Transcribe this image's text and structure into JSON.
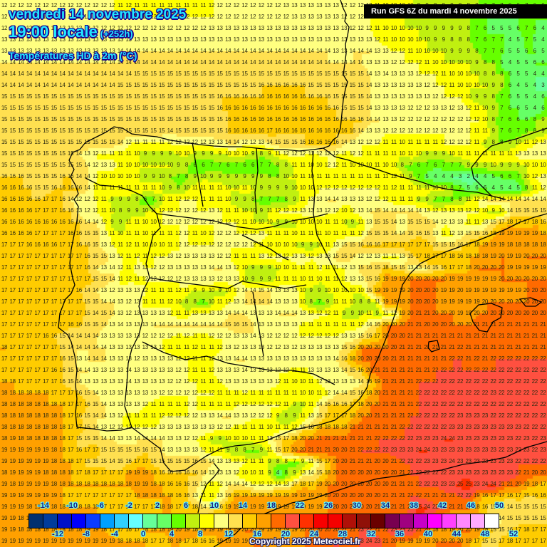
{
  "header": {
    "date_line": "vendredi 14 novembre 2025",
    "time_line": "19:00 locale",
    "lead_time": "(+252h)",
    "variable": "Températures HD à 2m (°C)"
  },
  "run_info": "Run GFS 6Z du mardi 4 novembre 2025",
  "copyright": "Copyright 2025 Meteociel.fr",
  "colorbar": {
    "top_labels": [
      "-14",
      "-10",
      "-6",
      "-2",
      "2",
      "6",
      "10",
      "14",
      "18",
      "22",
      "26",
      "30",
      "34",
      "38",
      "42",
      "46",
      "50"
    ],
    "bottom_labels": [
      "-12",
      "-8",
      "-4",
      "0",
      "4",
      "8",
      "12",
      "16",
      "20",
      "24",
      "28",
      "32",
      "36",
      "40",
      "44",
      "48",
      "52"
    ],
    "colors": [
      "#001040",
      "#003070",
      "#003c9c",
      "#0010c8",
      "#0000ff",
      "#0a3cff",
      "#00a0ff",
      "#30d0ff",
      "#66ffff",
      "#66ff99",
      "#66ff66",
      "#66ff00",
      "#c0f010",
      "#ffff00",
      "#ffff80",
      "#ffe050",
      "#ffcc00",
      "#ffa000",
      "#ff6a00",
      "#ff5040",
      "#ff3000",
      "#f80000",
      "#f40000",
      "#b01008",
      "#901008",
      "#6a0000",
      "#780050",
      "#a00080",
      "#c800c8",
      "#ff00ff",
      "#ff40ff",
      "#ff88ff",
      "#ffaaff",
      "#ffffff"
    ]
  },
  "chart_data": {
    "type": "heatmap",
    "title": "Températures HD à 2m (°C) — vendredi 14 novembre 2025 19:00 locale (+252h)",
    "model": "GFS 6Z du mardi 4 novembre 2025",
    "region": "Péninsule Ibérique / golfe de Gascogne / Baléares",
    "units": "°C",
    "grid_cols": 66,
    "grid_rows": 48,
    "scale_min": -14,
    "scale_step": 2,
    "rows": [
      "12 12 12 12 12 12 12 12 12 12 12 12 12 12 11 12 11 11 11 11 11 11 11 11 11 12 12 12 12 12 12 12 12 12 13 13 13 13 13 13 13 12 12 12 12 11 10 10 10 10 9 9 9 9 9 9 8 8 7 7 7 6 6 7 6 6",
      "12 12 12 12 12 12 12 12 12 12 12 12 12 12 12 12 12 12 12 12 12 12 12 12 12 12 12 12 12 12 12 12 12 12 12 13 13 13 13 13 13 12 12 12 12 11 10 10 10 9 9 9 9 9 9 8 8 7 6 5 5 5 6 7 6 6",
      "12 12 12 12 12 12 12 12 12 12 12 12 12 12 12 12 12 12 12 13 12 12 12 12 12 13 13 13 13 13 13 13 13 13 13 13 13 13 13 13 13 13 12 12 12 11 10 10 10 10 10 9 9 9 9 9 8 7 6 5 5 5 6 7 6 4",
      "13 13 13 13 13 13 13 13 13 13 13 13 13 13 13 13 13 13 13 13 13 13 13 13 13 13 13 13 13 13 13 13 13 13 13 13 13 13 13 13 13 13 13 13 13 12 11 10 10 10 10 10 9 9 8 8 8 7 6 7 7 4 5 7 5 4",
      "13 13 13 13 13 13 13 13 13 13 13 13 13 13 14 14 14 14 14 14 14 14 14 14 14 14 14 14 14 14 14 14 14 14 14 14 14 14 14 14 13 13 14 14 14 13 13 12 12 11 10 10 10 10 9 9 9 8 7 7 6 5 5 6 6 5",
      "14 14 14 14 14 14 14 14 14 14 14 14 14 14 14 14 14 14 14 14 14 14 14 14 14 14 14 14 14 14 14 14 14 14 14 14 14 14 14 14 14 14 14 14 13 13 13 12 12 12 12 11 10 10 10 10 10 9 8 8 5 4 5 5 6 6",
      "14 14 14 14 14 14 14 14 14 14 14 14 14 14 14 14 15 15 15 15 15 15 15 15 15 15 15 15 15 15 15 15 15 15 15 15 15 15 15 15 15 15 15 15 14 13 14 13 13 13 12 12 12 11 10 10 10 10 8 8 8 6 5 5 4 4",
      "14 14 14 14 14 14 14 14 14 14 14 14 14 14 15 15 15 15 15 15 15 15 15 15 15 15 15 15 15 15 15 16 16 16 16 16 16 15 15 15 15 15 15 15 14 13 13 13 13 13 13 12 12 12 11 10 10 10 10 9 8 6 4 5 4 3",
      "15 15 15 15 15 15 15 15 15 15 15 15 15 15 15 15 15 15 15 15 15 15 15 15 15 15 16 16 16 16 16 16 16 16 16 16 16 16 16 16 15 15 15 15 14 13 13 13 13 13 13 13 12 12 12 12 10 9 9 8 7 6 5 5 4 6",
      "15 15 15 15 15 15 15 15 15 15 15 15 15 15 15 15 15 15 15 15 15 15 15 15 15 15 16 16 16 16 16 16 16 16 16 16 16 16 16 16 16 15 15 15 14 13 13 13 13 12 12 12 13 13 12 13 12 11 10 9 7 6 6 5 4 6",
      "15 15 15 15 15 15 15 15 15 15 15 15 15 15 15 15 15 15 15 15 15 15 15 15 15 15 15 16 16 16 16 16 16 16 16 16 16 16 16 16 16 16 16 16 14 14 13 13 12 12 12 12 12 12 12 12 12 12 10 8 7 6 6 6 8 9",
      "15 15 15 15 15 15 15 15 15 15 15 15 15 15 15 15 15 15 15 15 14 15 15 15 15 15 15 16 16 16 16 16 17 16 16 16 16 16 16 16 16 16 16 14 13 13 12 12 12 12 12 12 12 12 12 12 12 11 11 9 7 6 7 8 8 9",
      "15 15 15 15 15 15 15 15 15 15 15 15 15 15 14 12 11 11 11 11 12 12 12 12 12 13 13 14 14 12 12 13 14 15 15 15 16 16 16 16 16 14 13 12 12 12 11 11 10 11 11 11 11 12 12 12 12 11 9 8 8 9 10 11 12 13",
      "15 15 15 15 15 15 15 15 15 14 13 12 11 11 11 11 10 9 9 9 9 10 10 9 9 9 9 10 10 10 9 8 9 11 12 12 12 11 12 12 12 11 12 12 11 11 11 11 10 11 10 9 9 9 10 11 11 11 11 11 11 11 13 13 13 13",
      "15 15 15 15 15 15 15 15 15 15 14 12 13 13 11 10 10 10 10 10 10 9 8 6 6 7 7 6 7 6 6 7 7 8 8 11 11 10 10 12 12 11 10 10 10 11 10 10 8 7 6 7 6 7 7 7 9 9 9 10 9 9 9 10 10 10",
      "16 16 16 15 15 15 15 16 16 14 14 12 10 10 10 10 10 9 9 10 8 7 8 9 10 9 9 9 9 9 9 9 8 8 10 10 11 10 11 11 11 11 11 11 11 11 11 12 11 9 7 5 4 4 4 3 2 4 4 5 6 6 7 10 12 13",
      "16 16 16 16 15 15 16 16 16 16 14 11 11 11 11 11 11 11 11 10 9 8 10 11 11 11 11 10 10 11 10 9 9 9 9 10 10 10 12 12 12 12 12 12 12 12 11 12 11 11 11 11 10 10 8 7 5 6 6 4 5 4 5 8 11 12",
      "16 16 16 16 16 17 17 16 14 12 12 12 11 9 9 9 8 6 7 10 11 12 12 12 11 11 11 10 9 9 8 7 7 7 8 9 11 13 13 14 14 13 13 13 12 12 12 11 11 11 9 9 7 7 8 8 11 12 14 14 14 14 14 14 14 14",
      "16 16 16 16 17 17 17 16 16 13 12 12 11 10 8 9 9 10 11 12 12 12 12 12 12 13 12 11 11 10 10 9 11 12 12 12 13 13 13 12 12 10 12 13 14 15 14 14 14 14 14 13 12 13 13 13 12 12 10 9 10 14 15 15 15 15",
      "16 16 16 16 16 16 16 16 16 16 14 14 12 9 9 11 11 10 10 12 12 12 12 12 12 12 12 12 12 11 10 10 10 9 9 10 10 10 10 11 11 10 9 11 13 15 15 14 13 15 15 15 14 12 13 13 11 11 13 15 17 18 17 17 18 16",
      "16 16 16 16 17 17 17 17 16 16 15 15 13 11 10 11 11 10 11 11 11 12 12 11 10 12 12 12 12 12 12 13 11 11 11 10 11 11 11 10 11 11 11 12 15 15 15 14 14 15 16 15 13 11 12 13 15 15 16 18 19 19 19 19 19 18",
      "17 17 17 16 16 16 16 17 17 16 16 15 13 12 11 12 11 10 10 10 11 12 12 12 12 12 12 12 12 12 12 11 10 10 10 10 9 9 10 11 13 15 15 16 16 16 17 17 17 17 17 17 15 15 15 16 17 18 19 19 19 18 18 18 18 18",
      "17 17 17 17 17 17 17 17 17 17 16 15 15 13 12 11 12 11 12 12 13 12 13 13 13 13 12 12 11 11 11 13 12 13 12 13 13 12 13 13 15 15 14 12 12 13 11 11 13 15 17 18 17 17 18 16 18 18 18 19 20 19 19 20 20 20",
      "17 17 17 17 17 17 17 17 17 17 16 14 13 14 12 11 13 12 12 12 13 13 13 13 13 14 14 13 12 10 9 9 9 10 10 11 11 11 12 11 11 12 13 15 16 15 18 15 15 13 13 14 15 16 17 17 18 20 20 20 20 19 19 19 19 19",
      "17 17 17 17 17 17 17 17 17 17 17 15 15 14 11 12 11 12 12 12 12 12 13 13 13 13 12 13 13 10 9 9 9 11 11 11 10 11 10 11 11 12 13 13 15 16 19 19 19 20 20 20 20 20 19 19 19 19 19 19 20 20 20 20 20 20",
      "17 17 17 17 17 17 17 17 17 16 14 14 13 12 13 13 13 12 11 11 11 12 11 9 9 10 9 10 12 14 14 15 14 13 13 13 10 9 9 10 10 10 10 10 15 19 19 19 19 20 20 20 20 19 19 20 19 19 19 19 19 19 19 20 20 20",
      "17 17 17 17 17 17 17 17 17 17 15 15 14 14 13 12 13 11 11 11 12 10 8 8 7 10 11 12 13 14 14 14 14 13 13 13 10 8 7 9 11 11 10 8 8 11 19 19 19 20 20 20 20 19 19 19 19 19 20 20 20 20 20 20 20 20",
      "17 17 17 17 17 17 17 17 17 17 15 14 15 14 13 12 13 13 13 13 12 11 11 13 13 13 13 14 14 14 13 13 13 14 14 14 13 13 12 12 11 9 9 10 11 9 11 12 19 20 21 21 20 20 20 19 19 20 20 20 20 20 20 20 20 20",
      "17 17 17 17 17 17 17 17 16 16 15 15 14 13 14 13 13 13 14 14 14 14 14 14 14 14 14 15 16 15 14 13 13 13 13 13 11 11 11 11 11 11 11 12 14 16 20 20 20 21 21 20 20 20 20 20 20 21 21 21 21 21 21 21 21 21",
      "17 17 17 17 17 16 16 15 14 14 14 14 13 13 13 13 13 12 12 12 12 11 12 11 11 12 12 12 13 13 14 13 12 12 12 12 12 12 12 12 12 13 13 15 16 17 20 20 20 21 21 21 21 21 21 21 21 21 21 21 21 21 21 21 21 21",
      "18 17 17 17 17 17 17 15 14 14 14 14 14 13 13 13 13 13 13 12 11 11 11 12 11 11 12 13 12 13 13 13 12 12 13 12 13 13 13 13 13 15 16 20 20 20 20 20 21 21 21 21 21 21 21 22 21 21 21 21 21 21 21 21 21 21",
      "17 17 17 17 17 17 17 16 15 13 14 14 14 13 13 13 12 13 13 13 13 12 12 11 11 12 13 13 14 14 13 13 13 13 13 13 13 13 13 13 14 16 18 20 20 20 20 21 21 21 21 21 21 21 22 22 21 22 21 22 22 22 22 22 22 22",
      "17 17 17 17 17 17 16 16 15 14 14 13 13 13 13 14 13 13 13 13 13 12 12 11 11 12 13 13 13 14 13 13 13 12 12 11 11 13 13 13 13 14 15 16 20 21 21 21 21 21 21 21 22 22 22 22 22 22 22 22 22 22 22 22 22 22",
      "18 18 17 17 17 17 17 16 15 14 13 13 13 13 13 14 13 13 13 13 12 12 12 12 11 11 12 13 13 13 13 13 13 12 11 10 10 11 12 13 13 13 13 14 16 19 21 21 21 21 22 22 22 22 22 22 22 22 22 22 22 22 22 22 22 22",
      "18 18 18 18 18 18 17 17 17 16 15 14 13 13 13 13 13 13 13 12 12 12 12 12 12 12 11 11 11 12 11 11 11 11 11 11 10 10 11 12 14 14 15 16 18 20 21 21 21 21 22 22 22 22 22 22 22 22 22 23 22 22 22 22 22 22",
      "18 18 18 18 18 18 18 18 17 17 16 15 14 13 13 13 13 12 11 11 11 11 12 12 11 11 11 11 12 12 12 12 12 12 11 9 10 11 14 16 16 16 17 18 20 20 21 21 21 21 22 22 22 22 22 22 22 22 22 22 22 22 22 22 22 22",
      "18 18 18 18 18 18 18 18 17 16 15 14 14 13 12 11 11 11 11 12 12 12 12 12 13 13 14 14 13 13 12 12 12 9 8 9 11 13 15 17 17 17 18 20 20 21 21 21 21 22 22 22 22 22 22 23 23 23 23 22 22 22 22 22 22 22",
      "18 18 18 18 18 18 18 18 17 17 15 14 13 12 12 12 12 12 12 13 13 13 13 13 13 13 12 12 11 11 11 11 10 11 11 12 15 16 18 18 18 18 21 21 21 21 21 21 22 22 22 22 22 22 23 23 23 23 23 23 23 23 23 22 22 22",
      "18 19 18 18 18 18 18 18 17 15 15 15 14 14 13 13 14 14 14 14 13 13 12 12 11 9 9 10 10 10 11 11 13 15 17 18 20 20 21 21 21 21 21 21 21 22 22 22 22 22 23 23 23 24 24 23 23 23 23 23 23 23 22 23 22 23",
      "19 19 19 19 19 19 18 18 17 16 17 17 15 15 15 15 15 16 15 14 13 13 13 13 12 11 11 9 8 8 7 9 11 15 17 20 20 21 21 21 20 20 21 22 22 22 22 23 23 23 24 24 23 23 23 23 23 23 23 23 22 23 22 23 22 23",
      "19 19 19 19 19 19 18 18 18 17 15 15 15 14 15 16 17 17 15 15 15 15 15 16 15 14 13 13 13 12 11 11 9 8 8 7 9 11 15 17 20 20 21 21 21 20 20 21 22 22 22 23 23 23 24 23 23 23 23 23 23 23 22 22 22 22",
      "18 19 19 19 19 18 18 18 18 17 18 17 17 17 17 19 19 19 18 16 16 16 16 16 14 13 13 13 12 10 10 11 9 4 8 9 13 14 15 18 20 20 20 20 20 20 20 20 21 22 22 22 22 22 23 23 23 23 23 23 23 23 22 21 20 20",
      "19 18 19 19 19 19 18 18 18 18 18 18 18 18 18 18 19 19 18 18 16 16 16 15 12 11 12 14 14 14 12 12 12 14 13 17 18 17 19 20 20 20 20 20 20 20 20 21 21 21 22 22 22 23 23 25 25 23 24 24 21 21 20 19 18 17",
      "19 19 19 19 19 19 19 18 17 17 17 17 17 17 17 17 18 18 18 18 18 16 16 13 11 11 13 16 19 19 19 19 19 19 19 19 19 19 19 20 20 20 20 20 20 20 21 21 21 22 22 21 21 21 21 22 22 19 16 17 17 16 17 15 16 16",
      "19 19 19 18 19 19 18 18 18 18 18 18 17 17 17 17 17 17 17 18 18 17 17 18 14 15 16 19 19 19 19 19 19 19 19 19 19 19 19 20 20 20 20 20 20 21 21 21 21 22 25 24 22 22 21 21 20 18 16 15 14 14 15 15 15 15",
      "19 19 18 18 18 18 18 18 18 18 18 18 18 18 18 17 17 17 17 18 18 18 17 15 17 19 18 19 19 19 19 19 19 19 19 19 20 20 20 20 20 21 22 22 22 22 22 22 22 24 24 22 20 18 16 16 17 19 17 13 14 15 15 15 15 15",
      "19 19 18 18 18 18 18 18 18 18 19 19 18 17 17 16 17 18 18 18 19 20 19 18 19 19 19 19 19 20 20 19 19 19 19 19 20 20 20 20 20 21 21 23 22 21 22 23 23 23 21 20 18 18 19 20 20 19 18 15 15 16 17 18 17 17",
      "19 19 19 19 19 19 19 19 19 19 19 19 19 19 18 18 18 18 17 17 18 18 17 18 16 16 19 19 19 19 20 20 19 19 19 19 20 20 20 21 23 20 21 23 24 23 21 20 19 19 19 19 20 20 20 20 18 17 15 15 17 18 17 17 17 17"
    ]
  }
}
